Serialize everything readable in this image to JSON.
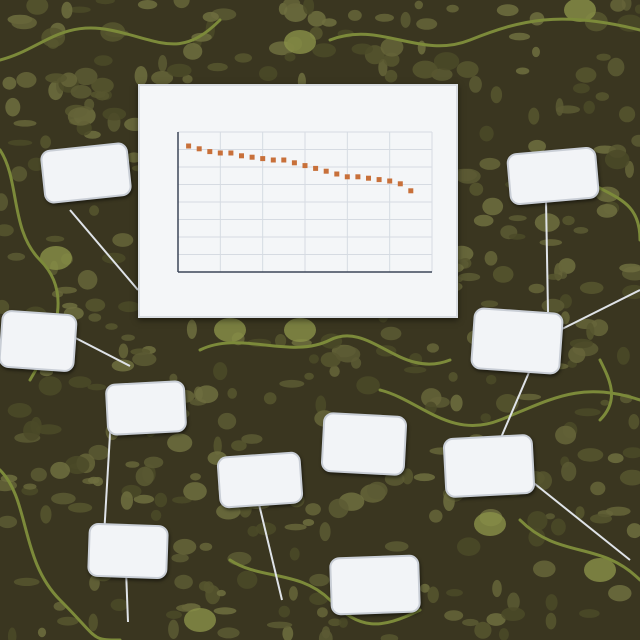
{
  "chart_data": {
    "type": "scatter",
    "title": "",
    "xlabel": "",
    "ylabel": "",
    "x_ticks": [
      "",
      "",
      "",
      "",
      "",
      ""
    ],
    "y_ticks": [],
    "grid": true,
    "series": [
      {
        "color": "#c8703a",
        "x": [
          0.5,
          1.0,
          1.5,
          2.0,
          2.5,
          3.0,
          3.5,
          4.0,
          4.5,
          5.0,
          5.5,
          6.0,
          6.5,
          7.0,
          7.5,
          8.0,
          8.5,
          9.0,
          9.5,
          10.0,
          10.5,
          11.0
        ],
        "y": [
          9.0,
          8.8,
          8.6,
          8.5,
          8.5,
          8.3,
          8.2,
          8.1,
          8.0,
          8.0,
          7.8,
          7.6,
          7.4,
          7.2,
          7.0,
          6.8,
          6.8,
          6.7,
          6.6,
          6.5,
          6.3,
          5.8
        ]
      }
    ],
    "xlim": [
      0,
      12
    ],
    "ylim": [
      0,
      10
    ]
  },
  "colors": {
    "soil": "#3a3620",
    "pebble": "#6b6a3a",
    "vine": "#7c8a3a",
    "tag_fill": "#f2f4f7",
    "marker": "#c8703a"
  }
}
